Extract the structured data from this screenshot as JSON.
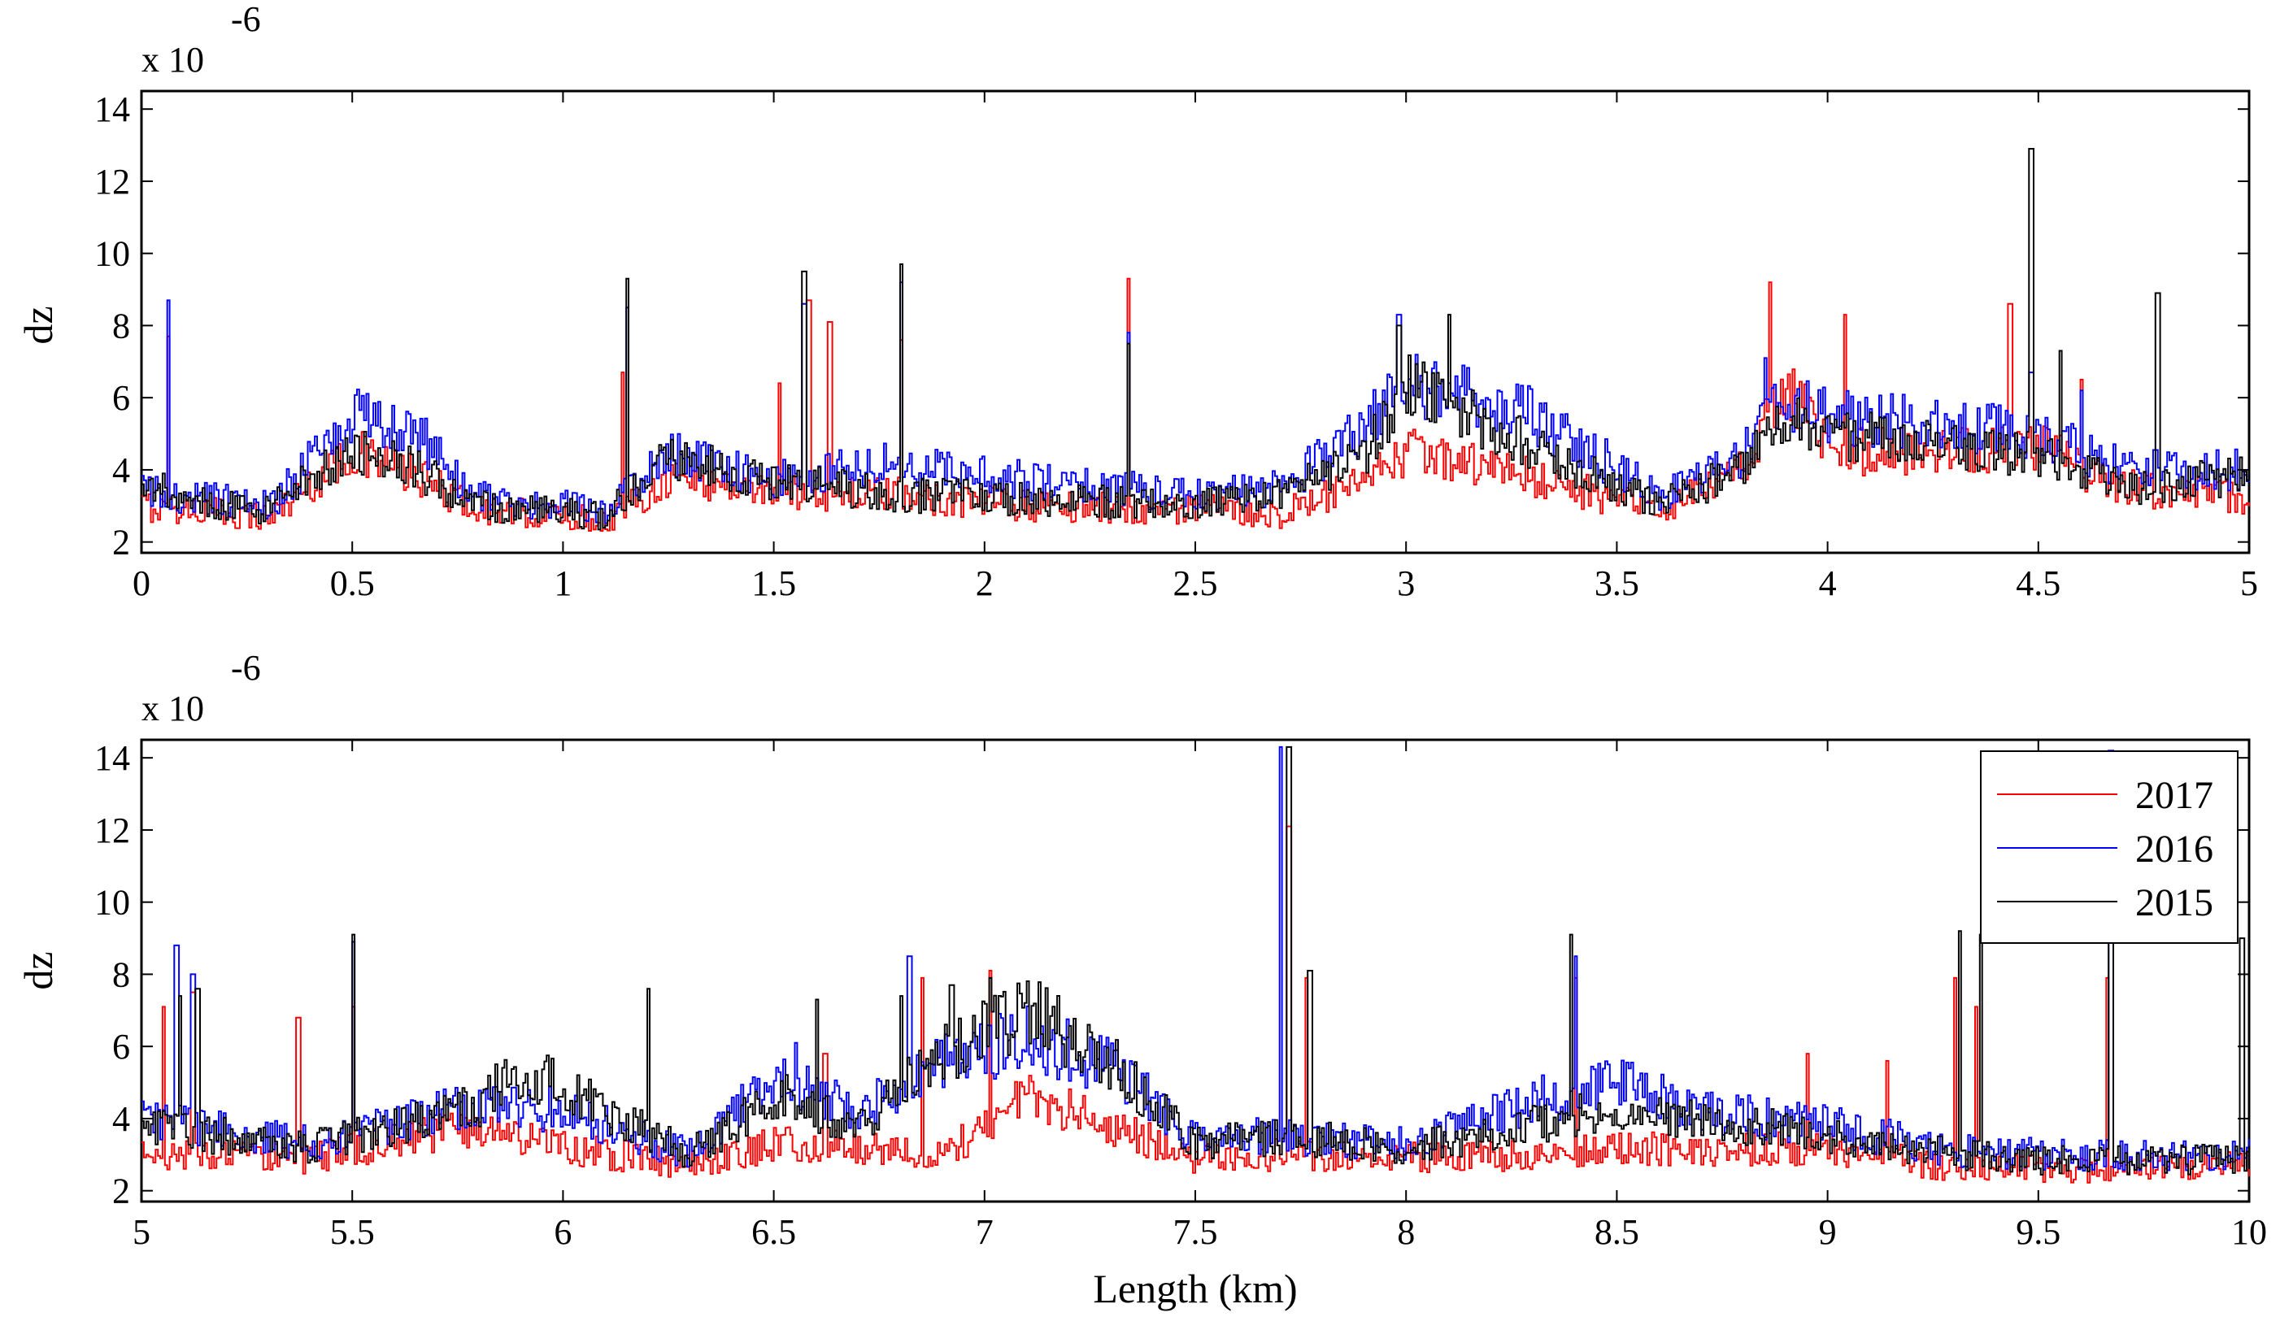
{
  "chart_data": [
    {
      "type": "line",
      "panel": "top",
      "xlabel": "",
      "ylabel": "dz",
      "exponent_prefix": "x 10",
      "exponent_power": "-6",
      "xlim": [
        0,
        5
      ],
      "ylim": [
        1.7,
        14.5
      ],
      "xticks": [
        0,
        0.5,
        1,
        1.5,
        2,
        2.5,
        3,
        3.5,
        4,
        4.5,
        5
      ],
      "xtick_labels": [
        "0",
        "0.5",
        "1",
        "1.5",
        "2",
        "2.5",
        "3",
        "3.5",
        "4",
        "4.5",
        "5"
      ],
      "yticks": [
        2,
        4,
        6,
        8,
        10,
        12,
        14
      ],
      "ytick_labels": [
        "2",
        "4",
        "6",
        "8",
        "10",
        "12",
        "14"
      ],
      "series": [
        {
          "name": "2017",
          "color": "#ff0000",
          "base": [
            [
              0,
              3.0
            ],
            [
              0.3,
              2.7
            ],
            [
              0.5,
              4.5
            ],
            [
              0.65,
              3.8
            ],
            [
              0.8,
              2.9
            ],
            [
              1.1,
              2.6
            ],
            [
              1.25,
              3.8
            ],
            [
              1.5,
              3.4
            ],
            [
              1.8,
              3.3
            ],
            [
              2.1,
              3.0
            ],
            [
              2.5,
              2.9
            ],
            [
              2.7,
              2.8
            ],
            [
              2.9,
              3.6
            ],
            [
              3.0,
              4.5
            ],
            [
              3.3,
              3.8
            ],
            [
              3.6,
              2.8
            ],
            [
              3.8,
              4.0
            ],
            [
              3.9,
              6.5
            ],
            [
              4.0,
              4.5
            ],
            [
              4.5,
              4.6
            ],
            [
              4.7,
              3.5
            ],
            [
              5.0,
              3.2
            ]
          ],
          "spikes": [
            [
              0.06,
              7.7
            ],
            [
              1.14,
              6.7
            ],
            [
              1.51,
              6.4
            ],
            [
              1.58,
              8.7
            ],
            [
              1.63,
              8.1
            ],
            [
              1.8,
              7.6
            ],
            [
              2.34,
              9.3
            ],
            [
              3.86,
              9.2
            ],
            [
              4.04,
              8.3
            ],
            [
              4.43,
              8.6
            ],
            [
              4.6,
              6.5
            ]
          ]
        },
        {
          "name": "2016",
          "color": "#0000ff",
          "base": [
            [
              0,
              3.4
            ],
            [
              0.3,
              3.0
            ],
            [
              0.5,
              5.5
            ],
            [
              0.65,
              5.0
            ],
            [
              0.8,
              3.2
            ],
            [
              1.1,
              2.9
            ],
            [
              1.25,
              4.4
            ],
            [
              1.5,
              3.8
            ],
            [
              1.8,
              4.2
            ],
            [
              2.1,
              3.7
            ],
            [
              2.5,
              3.3
            ],
            [
              2.7,
              3.5
            ],
            [
              2.9,
              5.2
            ],
            [
              3.0,
              6.5
            ],
            [
              3.3,
              5.5
            ],
            [
              3.6,
              3.3
            ],
            [
              3.8,
              4.5
            ],
            [
              3.9,
              6.0
            ],
            [
              4.0,
              5.5
            ],
            [
              4.5,
              5.0
            ],
            [
              4.7,
              4.0
            ],
            [
              5.0,
              4.0
            ]
          ],
          "spikes": [
            [
              0.06,
              8.7
            ],
            [
              1.15,
              8.5
            ],
            [
              1.57,
              8.6
            ],
            [
              1.8,
              9.2
            ],
            [
              2.34,
              7.8
            ],
            [
              2.98,
              8.3
            ],
            [
              3.85,
              7.1
            ],
            [
              4.48,
              6.7
            ],
            [
              4.6,
              6.2
            ]
          ]
        },
        {
          "name": "2015",
          "color": "#000000",
          "base": [
            [
              0,
              3.3
            ],
            [
              0.3,
              2.9
            ],
            [
              0.5,
              4.6
            ],
            [
              0.65,
              4.0
            ],
            [
              0.8,
              3.0
            ],
            [
              1.1,
              2.7
            ],
            [
              1.25,
              4.4
            ],
            [
              1.5,
              3.7
            ],
            [
              1.8,
              3.3
            ],
            [
              2.1,
              3.2
            ],
            [
              2.5,
              3.0
            ],
            [
              2.7,
              3.3
            ],
            [
              2.9,
              4.4
            ],
            [
              3.0,
              6.5
            ],
            [
              3.3,
              4.6
            ],
            [
              3.6,
              3.0
            ],
            [
              3.8,
              4.1
            ],
            [
              3.9,
              5.5
            ],
            [
              4.0,
              5.0
            ],
            [
              4.5,
              4.4
            ],
            [
              4.7,
              3.5
            ],
            [
              5.0,
              3.9
            ]
          ],
          "spikes": [
            [
              0.05,
              3.9
            ],
            [
              1.15,
              9.3
            ],
            [
              1.57,
              9.5
            ],
            [
              1.8,
              9.7
            ],
            [
              2.34,
              7.5
            ],
            [
              2.98,
              8.0
            ],
            [
              3.1,
              8.3
            ],
            [
              4.48,
              12.9
            ],
            [
              4.55,
              7.3
            ],
            [
              4.78,
              8.9
            ]
          ]
        }
      ]
    },
    {
      "type": "line",
      "panel": "bottom",
      "xlabel": "Length (km)",
      "ylabel": "dz",
      "exponent_prefix": "x 10",
      "exponent_power": "-6",
      "xlim": [
        5,
        10
      ],
      "ylim": [
        1.7,
        14.5
      ],
      "xticks": [
        5,
        5.5,
        6,
        6.5,
        7,
        7.5,
        8,
        8.5,
        9,
        9.5,
        10
      ],
      "xtick_labels": [
        "5",
        "5.5",
        "6",
        "6.5",
        "7",
        "7.5",
        "8",
        "8.5",
        "9",
        "9.5",
        "10"
      ],
      "yticks": [
        2,
        4,
        6,
        8,
        10,
        12,
        14
      ],
      "ytick_labels": [
        "2",
        "4",
        "6",
        "8",
        "10",
        "12",
        "14"
      ],
      "legend": {
        "location": "top-right",
        "entries": [
          "2017",
          "2016",
          "2015"
        ]
      },
      "series": [
        {
          "name": "2017",
          "color": "#ff0000",
          "base": [
            [
              5,
              3.0
            ],
            [
              5.4,
              2.9
            ],
            [
              5.8,
              3.8
            ],
            [
              6.0,
              3.2
            ],
            [
              6.3,
              2.7
            ],
            [
              6.5,
              3.3
            ],
            [
              6.7,
              3.2
            ],
            [
              6.9,
              3.0
            ],
            [
              7.1,
              4.6
            ],
            [
              7.3,
              3.8
            ],
            [
              7.5,
              2.9
            ],
            [
              7.7,
              3.0
            ],
            [
              8.0,
              2.9
            ],
            [
              8.3,
              3.0
            ],
            [
              8.5,
              3.2
            ],
            [
              8.7,
              3.1
            ],
            [
              9.0,
              3.2
            ],
            [
              9.3,
              2.6
            ],
            [
              9.6,
              2.6
            ],
            [
              10,
              2.7
            ]
          ],
          "spikes": [
            [
              5.05,
              7.1
            ],
            [
              5.12,
              7.5
            ],
            [
              5.37,
              6.8
            ],
            [
              5.5,
              7.1
            ],
            [
              6.62,
              5.8
            ],
            [
              6.85,
              7.9
            ],
            [
              7.01,
              8.1
            ],
            [
              7.72,
              12.1
            ],
            [
              7.76,
              7.9
            ],
            [
              8.4,
              7.9
            ],
            [
              8.95,
              5.8
            ],
            [
              9.14,
              5.6
            ],
            [
              9.3,
              7.9
            ],
            [
              9.35,
              7.1
            ],
            [
              9.66,
              7.9
            ]
          ]
        },
        {
          "name": "2016",
          "color": "#0000ff",
          "base": [
            [
              5,
              4.0
            ],
            [
              5.4,
              3.3
            ],
            [
              5.8,
              4.5
            ],
            [
              6.0,
              4.2
            ],
            [
              6.3,
              3.0
            ],
            [
              6.5,
              5.2
            ],
            [
              6.7,
              4.2
            ],
            [
              6.9,
              5.5
            ],
            [
              7.1,
              6.3
            ],
            [
              7.3,
              5.4
            ],
            [
              7.5,
              3.5
            ],
            [
              7.7,
              3.5
            ],
            [
              8.0,
              3.3
            ],
            [
              8.3,
              4.5
            ],
            [
              8.5,
              5.0
            ],
            [
              8.7,
              4.2
            ],
            [
              9.0,
              3.8
            ],
            [
              9.3,
              3.1
            ],
            [
              9.6,
              3.0
            ],
            [
              10,
              3.0
            ]
          ],
          "spikes": [
            [
              5.08,
              8.8
            ],
            [
              5.12,
              8.0
            ],
            [
              5.5,
              8.9
            ],
            [
              6.55,
              6.1
            ],
            [
              6.82,
              8.5
            ],
            [
              7.7,
              14.3
            ],
            [
              8.4,
              8.5
            ],
            [
              9.67,
              14.2
            ]
          ]
        },
        {
          "name": "2015",
          "color": "#000000",
          "base": [
            [
              5,
              3.8
            ],
            [
              5.4,
              3.2
            ],
            [
              5.8,
              4.4
            ],
            [
              5.9,
              5.4
            ],
            [
              6.0,
              4.8
            ],
            [
              6.3,
              3.0
            ],
            [
              6.5,
              4.7
            ],
            [
              6.7,
              3.8
            ],
            [
              6.9,
              5.8
            ],
            [
              7.1,
              7.0
            ],
            [
              7.3,
              5.5
            ],
            [
              7.5,
              3.3
            ],
            [
              7.7,
              3.5
            ],
            [
              8.0,
              3.2
            ],
            [
              8.3,
              3.8
            ],
            [
              8.5,
              4.3
            ],
            [
              8.7,
              4.0
            ],
            [
              9.0,
              3.5
            ],
            [
              9.3,
              3.0
            ],
            [
              9.6,
              2.8
            ],
            [
              10,
              2.9
            ]
          ],
          "spikes": [
            [
              5.09,
              7.4
            ],
            [
              5.13,
              7.6
            ],
            [
              5.5,
              9.1
            ],
            [
              6.2,
              7.6
            ],
            [
              6.6,
              7.3
            ],
            [
              6.8,
              7.4
            ],
            [
              6.92,
              7.7
            ],
            [
              7.01,
              7.9
            ],
            [
              7.72,
              14.3
            ],
            [
              7.77,
              8.1
            ],
            [
              8.39,
              9.1
            ],
            [
              9.31,
              9.2
            ],
            [
              9.36,
              9.1
            ],
            [
              9.67,
              9.0
            ],
            [
              9.98,
              9.0
            ]
          ]
        }
      ]
    }
  ]
}
